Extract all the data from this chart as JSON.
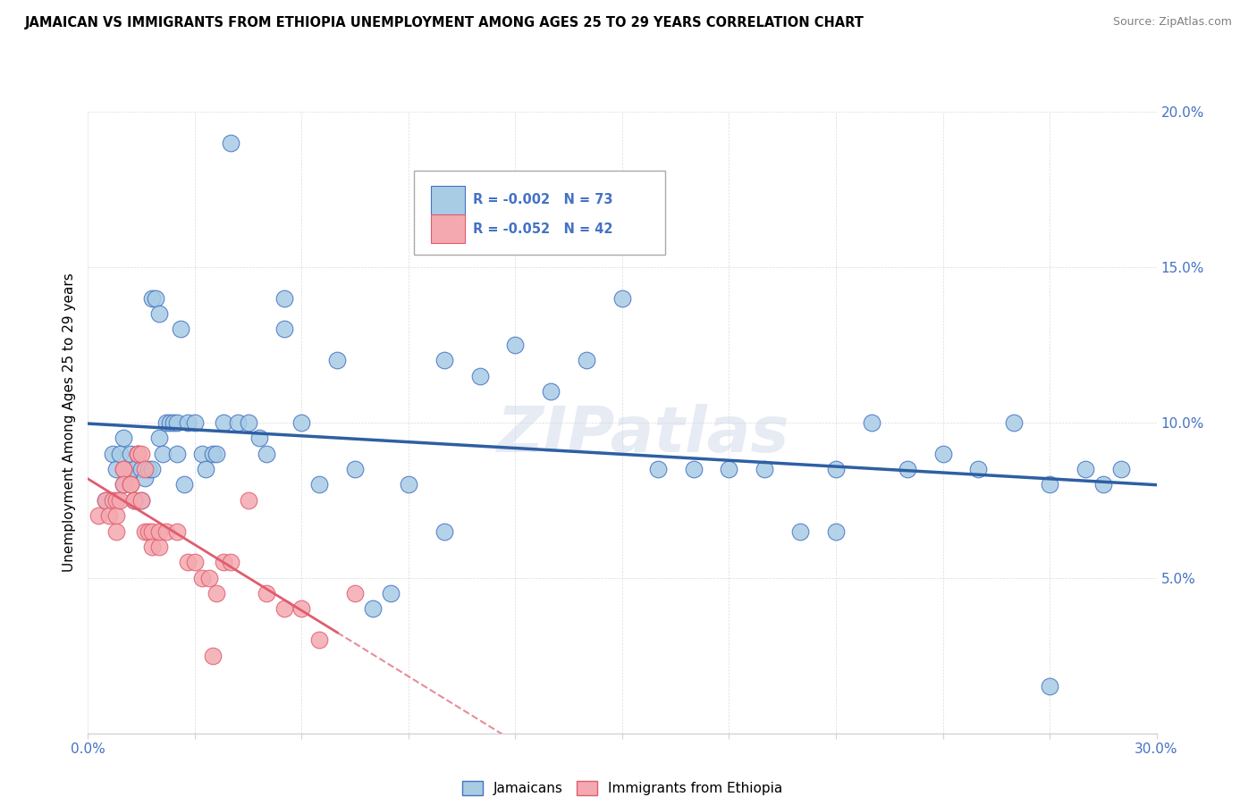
{
  "title": "JAMAICAN VS IMMIGRANTS FROM ETHIOPIA UNEMPLOYMENT AMONG AGES 25 TO 29 YEARS CORRELATION CHART",
  "source": "Source: ZipAtlas.com",
  "ylabel": "Unemployment Among Ages 25 to 29 years",
  "xlim": [
    0.0,
    0.3
  ],
  "ylim": [
    0.0,
    0.2
  ],
  "blue_R": -0.002,
  "blue_N": 73,
  "pink_R": -0.052,
  "pink_N": 42,
  "blue_color": "#a8cce4",
  "pink_color": "#f4a9b0",
  "blue_edge_color": "#4472C4",
  "pink_edge_color": "#E05C6E",
  "blue_line_color": "#2E5FA3",
  "pink_line_color": "#E05C6E",
  "watermark": "ZIPatlas",
  "blue_x": [
    0.005,
    0.007,
    0.008,
    0.009,
    0.01,
    0.01,
    0.012,
    0.012,
    0.013,
    0.013,
    0.014,
    0.015,
    0.015,
    0.016,
    0.017,
    0.018,
    0.018,
    0.019,
    0.02,
    0.02,
    0.021,
    0.022,
    0.023,
    0.024,
    0.025,
    0.025,
    0.026,
    0.027,
    0.028,
    0.03,
    0.032,
    0.033,
    0.035,
    0.036,
    0.038,
    0.04,
    0.042,
    0.045,
    0.048,
    0.05,
    0.055,
    0.055,
    0.06,
    0.065,
    0.07,
    0.075,
    0.08,
    0.085,
    0.09,
    0.1,
    0.1,
    0.11,
    0.12,
    0.13,
    0.14,
    0.15,
    0.16,
    0.17,
    0.18,
    0.19,
    0.2,
    0.21,
    0.22,
    0.23,
    0.24,
    0.25,
    0.26,
    0.27,
    0.28,
    0.285,
    0.29,
    0.21,
    0.27
  ],
  "blue_y": [
    0.075,
    0.09,
    0.085,
    0.09,
    0.095,
    0.08,
    0.085,
    0.09,
    0.075,
    0.085,
    0.09,
    0.085,
    0.075,
    0.082,
    0.085,
    0.085,
    0.14,
    0.14,
    0.135,
    0.095,
    0.09,
    0.1,
    0.1,
    0.1,
    0.09,
    0.1,
    0.13,
    0.08,
    0.1,
    0.1,
    0.09,
    0.085,
    0.09,
    0.09,
    0.1,
    0.19,
    0.1,
    0.1,
    0.095,
    0.09,
    0.14,
    0.13,
    0.1,
    0.08,
    0.12,
    0.085,
    0.04,
    0.045,
    0.08,
    0.065,
    0.12,
    0.115,
    0.125,
    0.11,
    0.12,
    0.14,
    0.085,
    0.085,
    0.085,
    0.085,
    0.065,
    0.065,
    0.1,
    0.085,
    0.09,
    0.085,
    0.1,
    0.08,
    0.085,
    0.08,
    0.085,
    0.085,
    0.015
  ],
  "pink_x": [
    0.003,
    0.005,
    0.006,
    0.007,
    0.008,
    0.008,
    0.008,
    0.009,
    0.01,
    0.01,
    0.01,
    0.012,
    0.012,
    0.013,
    0.013,
    0.014,
    0.014,
    0.015,
    0.015,
    0.016,
    0.016,
    0.017,
    0.018,
    0.018,
    0.02,
    0.02,
    0.022,
    0.025,
    0.028,
    0.03,
    0.032,
    0.034,
    0.036,
    0.038,
    0.04,
    0.045,
    0.05,
    0.055,
    0.06,
    0.065,
    0.075,
    0.035
  ],
  "pink_y": [
    0.07,
    0.075,
    0.07,
    0.075,
    0.075,
    0.07,
    0.065,
    0.075,
    0.085,
    0.085,
    0.08,
    0.08,
    0.08,
    0.075,
    0.075,
    0.09,
    0.09,
    0.09,
    0.075,
    0.085,
    0.065,
    0.065,
    0.065,
    0.06,
    0.06,
    0.065,
    0.065,
    0.065,
    0.055,
    0.055,
    0.05,
    0.05,
    0.045,
    0.055,
    0.055,
    0.075,
    0.045,
    0.04,
    0.04,
    0.03,
    0.045,
    0.025
  ]
}
